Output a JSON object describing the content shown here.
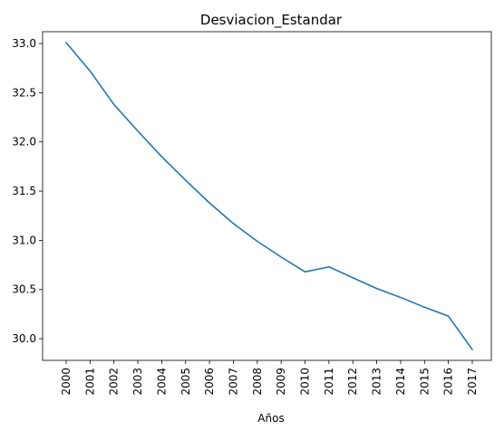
{
  "chart_data": {
    "type": "line",
    "title": "Desviacion_Estandar",
    "xlabel": "Años",
    "ylabel": "",
    "categories": [
      "2000",
      "2001",
      "2002",
      "2003",
      "2004",
      "2005",
      "2006",
      "2007",
      "2008",
      "2009",
      "2010",
      "2011",
      "2012",
      "2013",
      "2014",
      "2015",
      "2016",
      "2017"
    ],
    "series": [
      {
        "values": [
          33.01,
          32.72,
          32.38,
          32.11,
          31.85,
          31.61,
          31.38,
          31.17,
          30.99,
          30.83,
          30.68,
          30.73,
          30.62,
          30.51,
          30.42,
          30.32,
          30.23,
          29.89
        ]
      }
    ],
    "yticks": [
      "30.0",
      "30.5",
      "31.0",
      "31.5",
      "32.0",
      "32.5",
      "33.0"
    ],
    "ylim": [
      29.78,
      33.12
    ],
    "grid": false,
    "colors": {
      "line": "#1f77b4"
    }
  }
}
